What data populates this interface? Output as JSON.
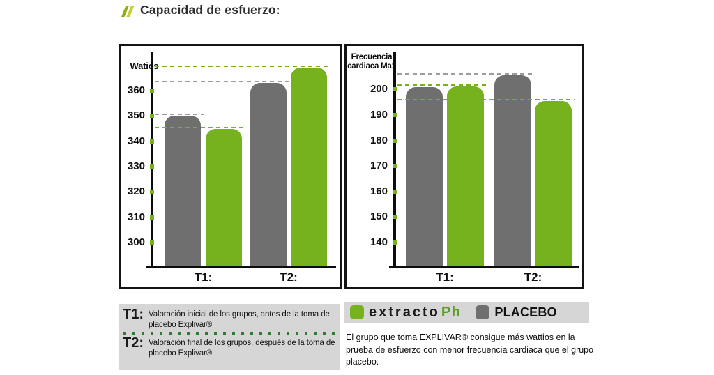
{
  "title": {
    "icon": "double-slash-icon",
    "text": "Capacidad de esfuerzo:"
  },
  "colors": {
    "extracto_green": "#76b11e",
    "placebo_gray": "#6f6f6f",
    "dash_gray": "#9c9c9c",
    "dot_dark_green": "#2e7b33",
    "box_background": "#d6d6d6",
    "panel_border": "#141414",
    "title_icon_green": "#a9c214"
  },
  "chart_data": [
    {
      "type": "bar",
      "ylabel": "Watios",
      "categories": [
        "T1:",
        "T2:"
      ],
      "series": [
        {
          "name": "PLACEBO",
          "color": "#6f6f6f",
          "values": [
            350,
            363
          ]
        },
        {
          "name": "extracto Ph",
          "color": "#76b11e",
          "values": [
            345,
            369
          ]
        }
      ],
      "yticks": [
        300,
        310,
        320,
        330,
        340,
        350,
        360
      ],
      "ylim": [
        291,
        374
      ],
      "grid": "dashed reference line at each bar top, from y-axis to bar right edge",
      "legend_position": "bottom-right shared bar"
    },
    {
      "type": "bar",
      "ylabel": "Frecuencia cardiaca Max",
      "categories": [
        "T1:",
        "T2:"
      ],
      "series": [
        {
          "name": "PLACEBO",
          "color": "#6f6f6f",
          "values": [
            201,
            205.5
          ]
        },
        {
          "name": "extracto Ph",
          "color": "#76b11e",
          "values": [
            201.3,
            195.5
          ]
        }
      ],
      "yticks": [
        140,
        150,
        160,
        170,
        180,
        190,
        200
      ],
      "ylim": [
        131,
        214
      ],
      "grid": "dashed reference line at each bar top, from y-axis to bar right edge",
      "legend_position": "bottom-right shared bar"
    }
  ],
  "definitions": [
    {
      "label": "T1:",
      "text": "Valoración inicial de los grupos, antes de la toma de placebo Explivar®"
    },
    {
      "label": "T2:",
      "text": "Valoración final de los grupos, después de la toma de placebo Explivar®"
    }
  ],
  "legend": {
    "items": [
      {
        "swatch": "#76b11e",
        "label": "extracto Ph"
      },
      {
        "swatch": "#6f6f6f",
        "label": "PLACEBO"
      }
    ],
    "logo": {
      "word": "extracto",
      "suffix": "Ph"
    },
    "placebo_label": "PLACEBO"
  },
  "conclusion": "El grupo que toma EXPLIVAR® consigue más wattios en la prueba de esfuerzo con menor frecuencia cardiaca que el grupo placebo."
}
